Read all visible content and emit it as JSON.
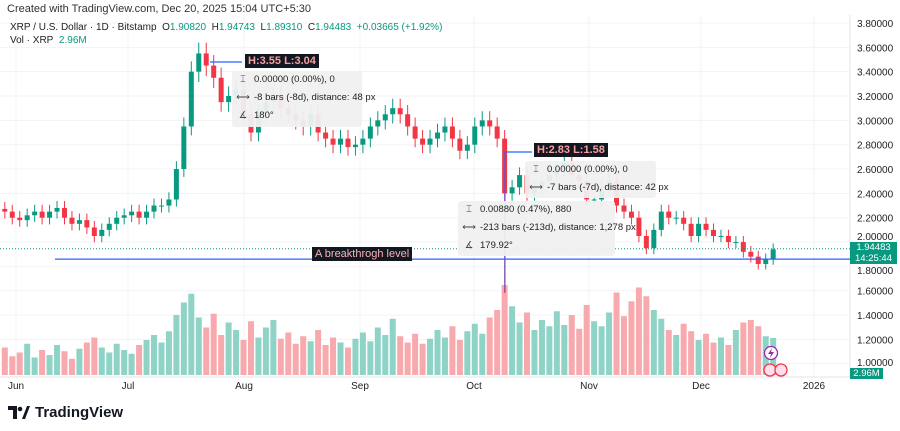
{
  "header": {
    "created": "Created with TradingView.com, Dec 20, 2025 15:04 UTC+5:30"
  },
  "legend": {
    "symbol": "XRP / U.S. Dollar · 1D · Bitstamp",
    "o_label": "O",
    "o": "1.90820",
    "h_label": "H",
    "h": "1.94743",
    "l_label": "L",
    "l": "1.89310",
    "c_label": "C",
    "c": "1.94483",
    "change": "+0.03665 (+1.92%)",
    "vol_label": "Vol · XRP",
    "vol": "2.96M"
  },
  "colors": {
    "up": "#089981",
    "down": "#f23645",
    "up_vol": "#8fd3c7",
    "down_vol": "#f7a9ad",
    "line": "#2962ff"
  },
  "price_axis": [
    "3.80000",
    "3.60000",
    "3.40000",
    "3.20000",
    "3.00000",
    "2.80000",
    "2.60000",
    "2.40000",
    "2.20000",
    "2.00000",
    "1.80000",
    "1.60000",
    "1.40000",
    "1.20000",
    "1.00000"
  ],
  "time_axis": [
    "Jun",
    "Jul",
    "Aug",
    "Sep",
    "Oct",
    "Nov",
    "Dec",
    "2026"
  ],
  "last_price": {
    "price": "1.94483",
    "countdown": "14:25:44",
    "volume": "2.96M"
  },
  "annotations": {
    "range1": "H:3.55 L:3.04",
    "range2": "H:2.83 L:1.58",
    "horizontal_line": "A breakthrogh level",
    "measure1": [
      "0.00000 (0.00%), 0",
      "-8 bars (-8d), distance: 48 px",
      "180°"
    ],
    "measure2": [
      "0.00000 (0.00%), 0",
      "-7 bars (-7d), distance: 42 px"
    ],
    "measure3": [
      "0.00880 (0.47%), 880",
      "-213 bars (-213d), distance: 1,278 px",
      "179.92°"
    ]
  },
  "chart_data": {
    "type": "candlestick",
    "symbol": "XRP/USD",
    "interval": "1D",
    "start_date": "2025-05-29",
    "interval_days": 2,
    "ylim": [
      1.0,
      3.8
    ],
    "breakthrough_level": 1.86,
    "closes": [
      2.25,
      2.2,
      2.18,
      2.22,
      2.25,
      2.2,
      2.25,
      2.28,
      2.2,
      2.15,
      2.18,
      2.12,
      2.05,
      2.1,
      2.15,
      2.2,
      2.22,
      2.25,
      2.2,
      2.25,
      2.3,
      2.3,
      2.35,
      2.6,
      2.95,
      3.4,
      3.55,
      3.45,
      3.35,
      3.15,
      3.2,
      3.25,
      3.05,
      2.9,
      3.05,
      3.15,
      3.2,
      3.1,
      3.05,
      3.0,
      2.95,
      3.05,
      2.9,
      2.85,
      2.8,
      2.85,
      2.78,
      2.8,
      2.85,
      2.95,
      3.0,
      3.05,
      3.1,
      3.05,
      2.95,
      2.85,
      2.8,
      2.85,
      2.9,
      2.95,
      2.85,
      2.75,
      2.8,
      2.95,
      3.0,
      2.95,
      2.85,
      2.4,
      2.45,
      2.55,
      2.4,
      2.45,
      2.5,
      2.55,
      2.6,
      2.65,
      2.55,
      2.5,
      2.35,
      2.35,
      2.45,
      2.5,
      2.3,
      2.25,
      2.2,
      2.05,
      1.95,
      2.1,
      2.25,
      2.2,
      2.2,
      2.15,
      2.05,
      2.15,
      2.1,
      2.05,
      2.05,
      2.0,
      2.0,
      1.92,
      1.88,
      1.82,
      1.86,
      1.94
    ],
    "volumes_m": [
      2.2,
      1.5,
      1.8,
      2.5,
      1.4,
      2.0,
      1.6,
      2.4,
      1.9,
      1.3,
      2.1,
      2.6,
      3.0,
      2.2,
      1.8,
      2.5,
      2.0,
      1.7,
      2.4,
      2.8,
      3.2,
      2.6,
      3.5,
      4.8,
      5.8,
      6.5,
      4.6,
      3.8,
      4.9,
      3.2,
      4.2,
      3.6,
      2.8,
      4.3,
      3.0,
      3.8,
      4.4,
      2.9,
      3.4,
      2.5,
      3.1,
      2.7,
      3.6,
      2.4,
      3.0,
      2.6,
      2.2,
      2.9,
      3.4,
      2.7,
      3.8,
      3.2,
      4.5,
      3.1,
      2.6,
      3.3,
      2.5,
      2.9,
      3.6,
      3.0,
      3.9,
      2.8,
      3.5,
      4.1,
      3.3,
      4.6,
      5.2,
      7.2,
      5.5,
      4.2,
      5.0,
      3.6,
      4.4,
      3.9,
      5.1,
      4.0,
      4.8,
      3.7,
      5.6,
      4.3,
      3.9,
      5.0,
      6.6,
      4.7,
      5.9,
      7.0,
      6.3,
      5.2,
      4.5,
      3.6,
      3.2,
      4.1,
      3.5,
      2.8,
      3.3,
      2.6,
      3.0,
      2.4,
      3.6,
      4.2,
      4.4,
      3.9,
      3.1,
      2.96
    ],
    "spike_low": {
      "date": "2025-10-10",
      "low": 1.58
    }
  }
}
